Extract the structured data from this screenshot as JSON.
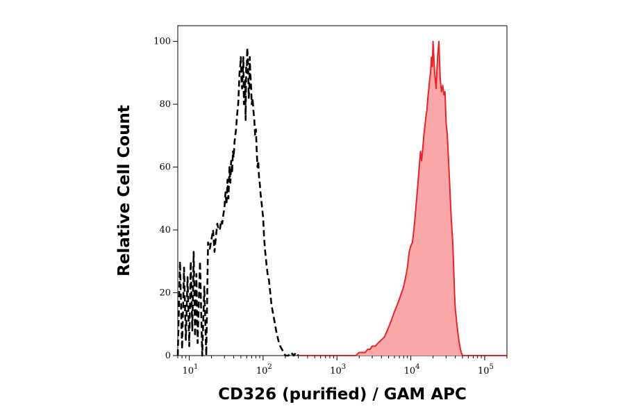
{
  "colors": {
    "stained_line": "#e8232a",
    "stained_fill": "#f9a7a8",
    "control_line": "#000000",
    "frame": "#000000"
  },
  "chart_data": {
    "type": "area",
    "title": "",
    "xlabel": "CD326 (purified) / GAM APC",
    "ylabel": "Relative Cell Count",
    "x_scale": "log",
    "xlim": [
      7,
      200000
    ],
    "ylim": [
      0,
      105
    ],
    "grid": false,
    "legend": "none",
    "y_ticks": [
      {
        "value": 0,
        "label": "0"
      },
      {
        "value": 20,
        "label": "20"
      },
      {
        "value": 40,
        "label": "40"
      },
      {
        "value": 60,
        "label": "60"
      },
      {
        "value": 80,
        "label": "80"
      },
      {
        "value": 100,
        "label": "100"
      }
    ],
    "x_ticks": [
      {
        "value": 10,
        "base": "10",
        "exp": "1"
      },
      {
        "value": 100,
        "base": "10",
        "exp": "2"
      },
      {
        "value": 1000,
        "base": "10",
        "exp": "3"
      },
      {
        "value": 10000,
        "base": "10",
        "exp": "4"
      },
      {
        "value": 100000,
        "base": "10",
        "exp": "5"
      }
    ],
    "series": [
      {
        "style": "dashed-outline",
        "x": [
          7,
          7.5,
          8,
          8.5,
          9,
          9.5,
          10,
          10.5,
          11,
          11.5,
          12,
          12.5,
          13,
          14,
          15,
          16,
          17,
          18,
          19,
          20,
          21,
          22,
          23,
          24,
          25,
          26,
          27,
          28,
          29,
          30,
          31,
          32,
          33,
          34,
          35,
          36,
          37,
          38,
          39,
          40,
          41,
          42,
          43,
          44,
          45,
          46,
          47,
          48,
          49,
          50,
          51,
          52,
          53,
          54,
          55,
          56,
          57,
          58,
          59,
          60,
          61,
          62,
          63,
          64,
          65,
          66,
          67,
          68,
          69,
          70,
          72,
          74,
          76,
          78,
          80,
          82,
          84,
          86,
          88,
          90,
          92,
          94,
          96,
          98,
          100,
          103,
          106,
          110,
          115,
          120,
          125,
          130,
          140,
          150,
          160,
          170,
          180,
          190,
          200,
          220,
          240,
          260,
          280,
          300
        ],
        "y": [
          0,
          30,
          2,
          28,
          5,
          25,
          3,
          30,
          8,
          33,
          6,
          26,
          4,
          30,
          0,
          22,
          0,
          36,
          34,
          37,
          40,
          33,
          38,
          42,
          40,
          40,
          43,
          42,
          45,
          47,
          52,
          48,
          56,
          50,
          60,
          55,
          62,
          58,
          65,
          63,
          68,
          70,
          72,
          75,
          78,
          80,
          85,
          90,
          92,
          95,
          88,
          85,
          90,
          95,
          80,
          85,
          88,
          75,
          92,
          90,
          98,
          95,
          90,
          82,
          85,
          95,
          90,
          88,
          85,
          80,
          82,
          78,
          75,
          70,
          72,
          65,
          60,
          62,
          57,
          55,
          52,
          50,
          48,
          46,
          44,
          38,
          34,
          30,
          26,
          24,
          20,
          16,
          12,
          8,
          5,
          3,
          2,
          1,
          0,
          0,
          1,
          0,
          1,
          0
        ]
      },
      {
        "style": "filled-red",
        "x": [
          300,
          400,
          500,
          600,
          700,
          800,
          900,
          1000,
          1100,
          1200,
          1300,
          1400,
          1500,
          1600,
          1800,
          2000,
          2200,
          2400,
          2600,
          2800,
          3000,
          3300,
          3600,
          4000,
          4400,
          4800,
          5200,
          5600,
          6000,
          6500,
          7000,
          7500,
          8000,
          8500,
          9000,
          9500,
          10000,
          10500,
          11000,
          11500,
          12000,
          12500,
          13000,
          13500,
          14000,
          14500,
          15000,
          15500,
          16000,
          16500,
          17000,
          17500,
          18000,
          18500,
          19000,
          19500,
          20000,
          21000,
          22000,
          23000,
          24000,
          25000,
          26000,
          27000,
          28000,
          29000,
          30000,
          31000,
          32000,
          33000,
          34000,
          35000,
          36000,
          37000,
          38000,
          39000,
          40000,
          42000,
          44000,
          46000,
          48000,
          50000,
          55000,
          60000,
          70000,
          80000,
          100000,
          150000,
          200000
        ],
        "y": [
          0,
          0,
          0,
          0,
          0,
          0,
          0,
          0,
          0,
          0,
          0,
          0,
          0,
          0,
          0,
          1,
          1,
          1,
          2,
          2,
          3,
          3,
          4,
          5,
          6,
          8,
          10,
          12,
          14,
          16,
          18,
          20,
          22,
          25,
          28,
          33,
          35,
          36,
          40,
          45,
          50,
          55,
          60,
          65,
          62,
          66,
          70,
          73,
          76,
          78,
          82,
          85,
          88,
          90,
          95,
          92,
          100,
          90,
          85,
          95,
          100,
          88,
          84,
          86,
          83,
          84,
          74,
          71,
          65,
          58,
          52,
          45,
          40,
          36,
          28,
          20,
          15,
          10,
          6,
          3,
          1,
          0,
          0,
          0,
          0,
          0,
          0,
          0,
          0
        ]
      }
    ]
  }
}
